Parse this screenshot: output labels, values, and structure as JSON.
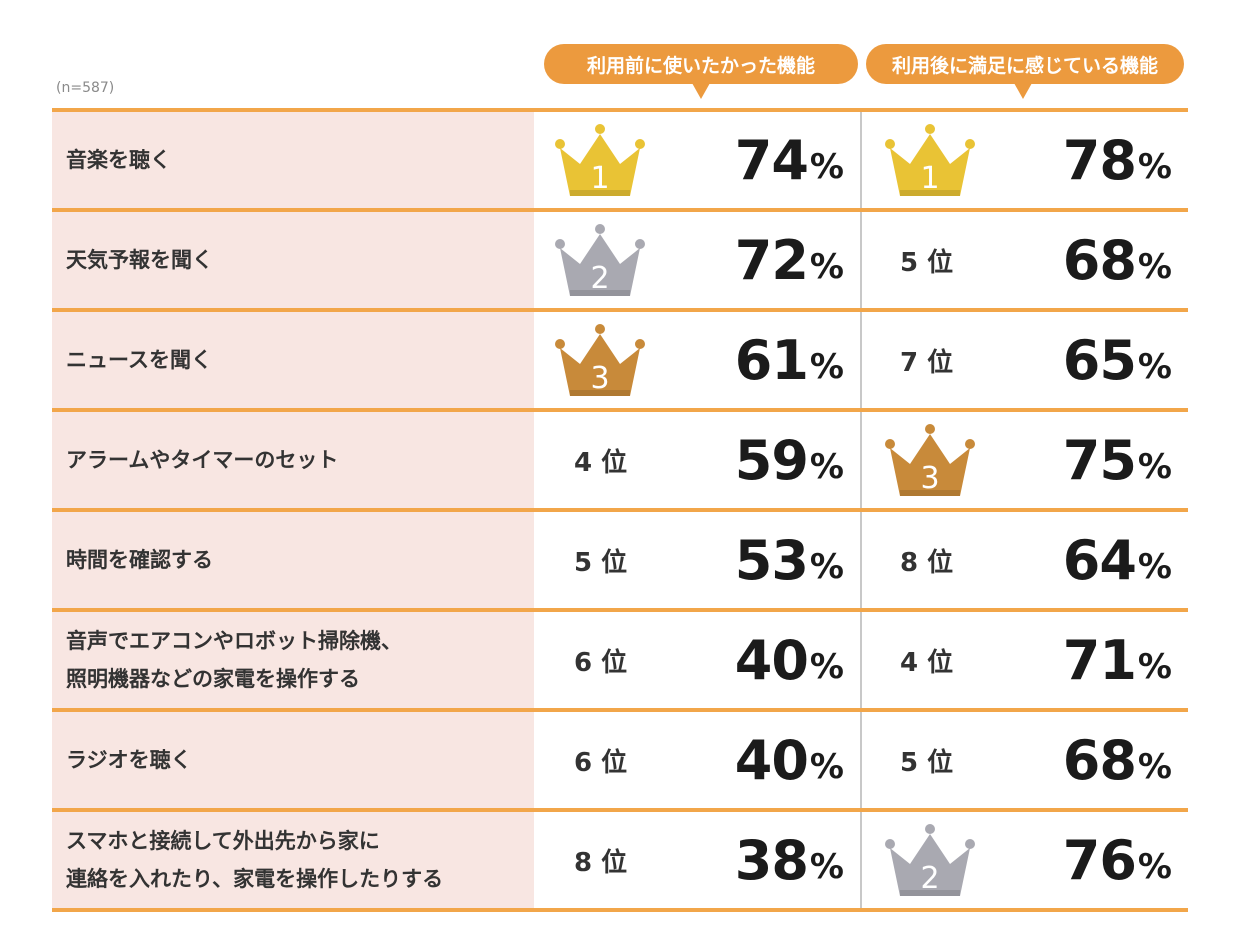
{
  "sample_size": "(n=587)",
  "headers": {
    "before": "利用前に使いたかった機能",
    "after": "利用後に満足に感じている機能"
  },
  "colors": {
    "accent": "#ec9a3e",
    "row_label_bg": "#f8e6e2",
    "gold": "#e9c335",
    "silver": "#a9a9b1",
    "bronze": "#c88a3a"
  },
  "rows": [
    {
      "label": "音楽を聴く",
      "before": {
        "rank_text": "",
        "crown": "gold",
        "crown_num": "1",
        "value": "74",
        "unit": "%"
      },
      "after": {
        "rank_text": "",
        "crown": "gold",
        "crown_num": "1",
        "value": "78",
        "unit": "%"
      }
    },
    {
      "label": "天気予報を聞く",
      "before": {
        "rank_text": "",
        "crown": "silver",
        "crown_num": "2",
        "value": "72",
        "unit": "%"
      },
      "after": {
        "rank_text": "5 位",
        "crown": "",
        "crown_num": "",
        "value": "68",
        "unit": "%"
      }
    },
    {
      "label": "ニュースを聞く",
      "before": {
        "rank_text": "",
        "crown": "bronze",
        "crown_num": "3",
        "value": "61",
        "unit": "%"
      },
      "after": {
        "rank_text": "7 位",
        "crown": "",
        "crown_num": "",
        "value": "65",
        "unit": "%"
      }
    },
    {
      "label": "アラームやタイマーのセット",
      "before": {
        "rank_text": "4 位",
        "crown": "",
        "crown_num": "",
        "value": "59",
        "unit": "%"
      },
      "after": {
        "rank_text": "",
        "crown": "bronze",
        "crown_num": "3",
        "value": "75",
        "unit": "%"
      }
    },
    {
      "label": "時間を確認する",
      "before": {
        "rank_text": "5 位",
        "crown": "",
        "crown_num": "",
        "value": "53",
        "unit": "%"
      },
      "after": {
        "rank_text": "8 位",
        "crown": "",
        "crown_num": "",
        "value": "64",
        "unit": "%"
      }
    },
    {
      "label": "音声でエアコンやロボット掃除機、照明機器などの家電を操作する",
      "label_lines": [
        "音声でエアコンやロボット掃除機、",
        "照明機器などの家電を操作する"
      ],
      "before": {
        "rank_text": "6 位",
        "crown": "",
        "crown_num": "",
        "value": "40",
        "unit": "%"
      },
      "after": {
        "rank_text": "4 位",
        "crown": "",
        "crown_num": "",
        "value": "71",
        "unit": "%"
      }
    },
    {
      "label": "ラジオを聴く",
      "before": {
        "rank_text": "6 位",
        "crown": "",
        "crown_num": "",
        "value": "40",
        "unit": "%"
      },
      "after": {
        "rank_text": "5 位",
        "crown": "",
        "crown_num": "",
        "value": "68",
        "unit": "%"
      }
    },
    {
      "label": "スマホと接続して外出先から家に連絡を入れたり、家電を操作したりする",
      "label_lines": [
        "スマホと接続して外出先から家に",
        "連絡を入れたり、家電を操作したりする"
      ],
      "before": {
        "rank_text": "8 位",
        "crown": "",
        "crown_num": "",
        "value": "38",
        "unit": "%"
      },
      "after": {
        "rank_text": "",
        "crown": "silver",
        "crown_num": "2",
        "value": "76",
        "unit": "%"
      }
    }
  ]
}
